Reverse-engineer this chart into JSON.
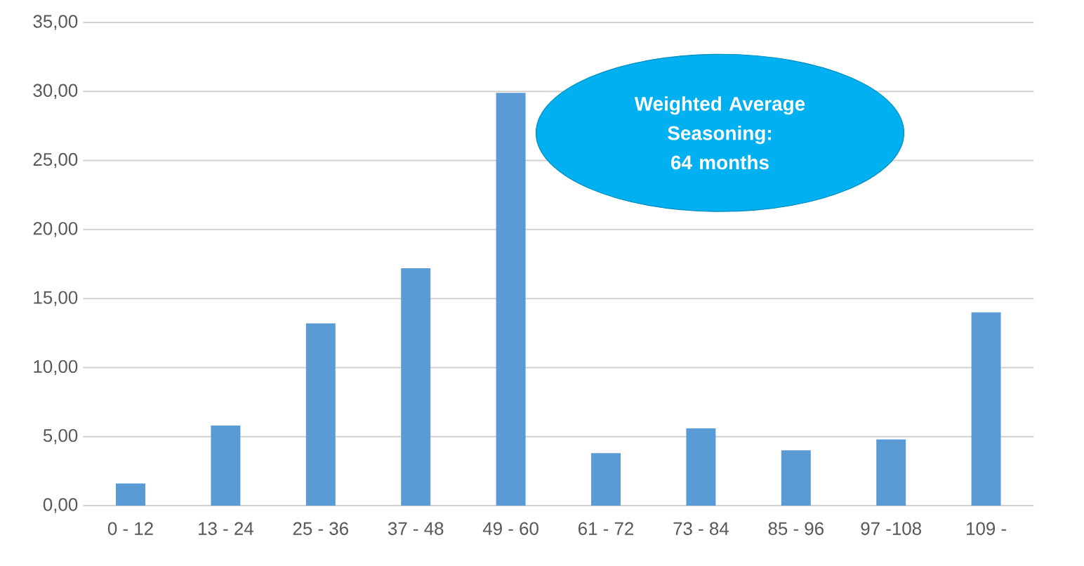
{
  "chart_data": {
    "type": "bar",
    "categories": [
      "0 - 12",
      "13 - 24",
      "25 - 36",
      "37 - 48",
      "49 - 60",
      "61 - 72",
      "73 - 84",
      "85 - 96",
      "97 -108",
      "109 -"
    ],
    "values": [
      1.6,
      5.8,
      13.2,
      17.2,
      29.9,
      3.8,
      5.6,
      4.0,
      4.8,
      14.0
    ],
    "color": "#5b9bd5",
    "ylim": [
      0,
      35
    ],
    "yticks": [
      {
        "value": 0,
        "label": "0,00"
      },
      {
        "value": 5,
        "label": "5,00"
      },
      {
        "value": 10,
        "label": "10,00"
      },
      {
        "value": 15,
        "label": "15,00"
      },
      {
        "value": 20,
        "label": "20,00"
      },
      {
        "value": 25,
        "label": "25,00"
      },
      {
        "value": 30,
        "label": "30,00"
      },
      {
        "value": 35,
        "label": "35,00"
      }
    ],
    "grid": "y",
    "annotations": [
      "Weighted Average Seasoning: 64 months"
    ]
  }
}
